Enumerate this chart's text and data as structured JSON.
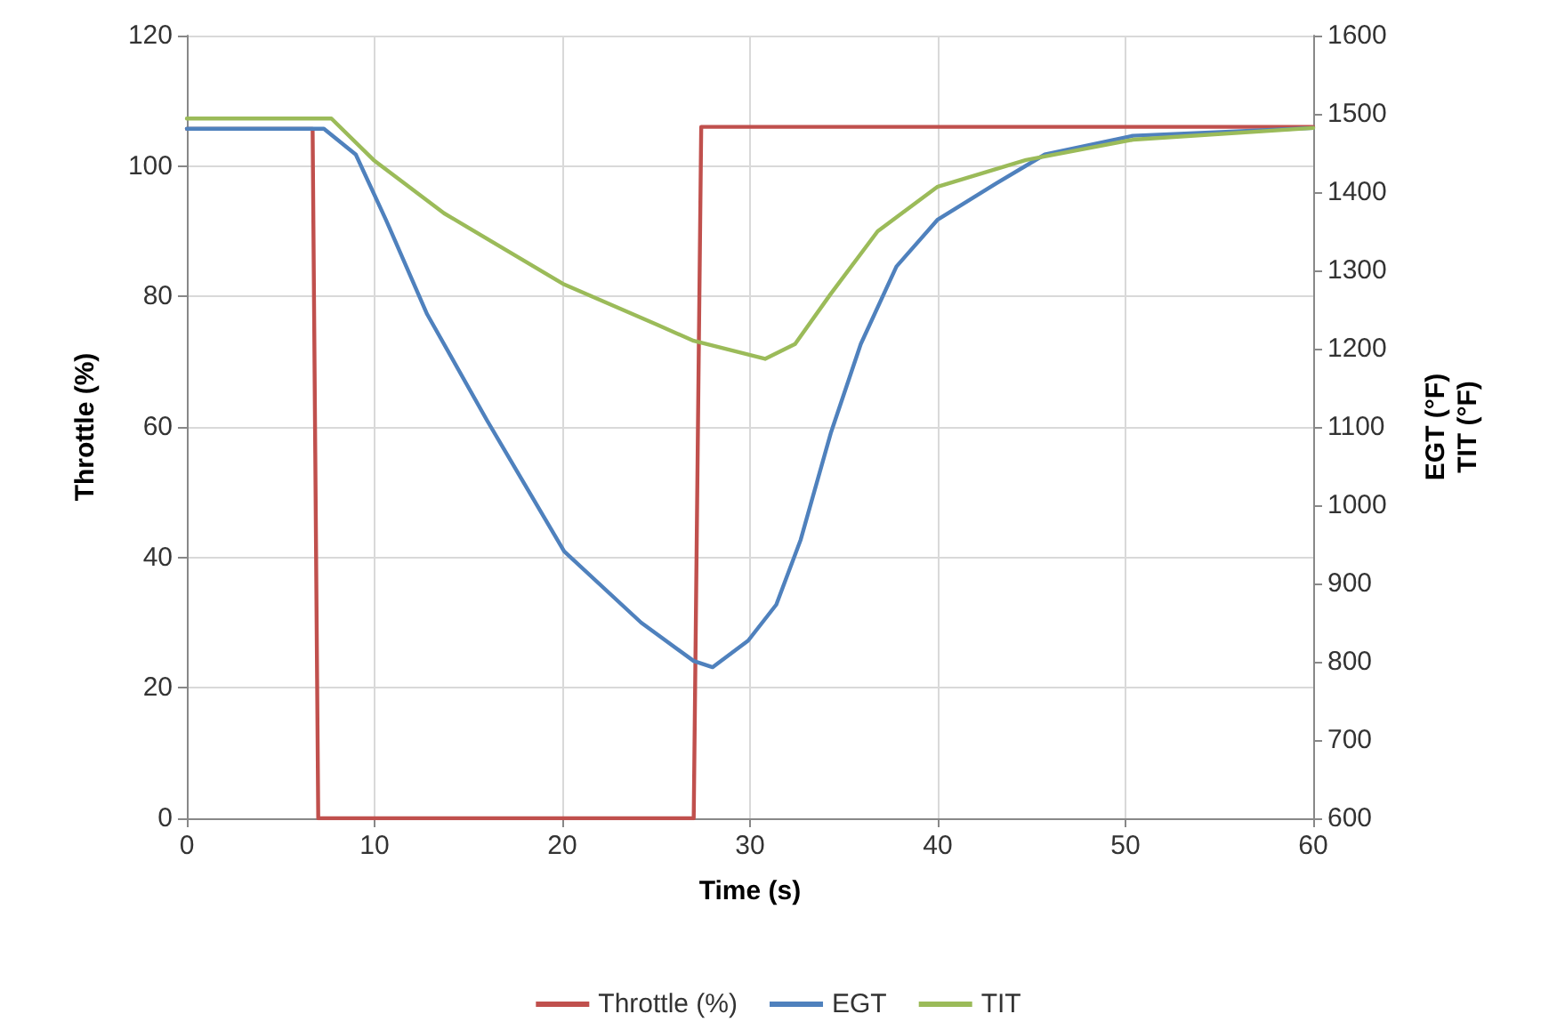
{
  "chart_data": {
    "type": "line",
    "xlabel": "Time (s)",
    "ylabel": "Throttle (%)",
    "y2label": "EGT (°F)\nTIT (°F)",
    "xlim": [
      0,
      60
    ],
    "xticks": [
      0,
      10,
      20,
      30,
      40,
      50,
      60
    ],
    "ylim": [
      0,
      120
    ],
    "yticks": [
      0,
      20,
      40,
      60,
      80,
      100,
      120
    ],
    "y2lim": [
      600,
      1600
    ],
    "y2ticks": [
      600,
      700,
      800,
      900,
      1000,
      1100,
      1200,
      1300,
      1400,
      1500,
      1600
    ],
    "grid": true,
    "legend": "bottom",
    "marker": "none",
    "line_style": "solid",
    "series": [
      {
        "name": "Throttle (%)",
        "color": "#c0504d",
        "x": [
          0,
          6.7,
          7.0,
          27.0,
          27.4,
          60
        ],
        "values": [
          105.7,
          105.7,
          0,
          0,
          106,
          106
        ]
      },
      {
        "name": "EGT",
        "color": "#4f81bd",
        "axis": "y2",
        "x": [
          0,
          7.3,
          9.0,
          10.6,
          12.8,
          16.0,
          20.1,
          24.2,
          27.0,
          28.0,
          29.9,
          31.4,
          32.7,
          34.3,
          35.9,
          37.8,
          40,
          43.1,
          45.7,
          50.4,
          60
        ],
        "values": [
          1481,
          1481,
          1448,
          1365,
          1244,
          1108,
          941,
          850,
          801,
          793,
          827,
          873,
          956,
          1092,
          1206,
          1305,
          1365,
          1411,
          1448,
          1472,
          1482
        ]
      },
      {
        "name": "TIT",
        "color": "#9bbb59",
        "axis": "y2",
        "x": [
          0,
          7.7,
          9.95,
          13.7,
          20.1,
          25.1,
          27.0,
          30.8,
          32.4,
          34.3,
          36.8,
          40,
          44.7,
          50.4,
          60
        ],
        "values": [
          1494,
          1494,
          1441,
          1373,
          1282,
          1230,
          1210,
          1187,
          1206,
          1270,
          1350,
          1407,
          1441,
          1467,
          1482
        ]
      }
    ]
  }
}
